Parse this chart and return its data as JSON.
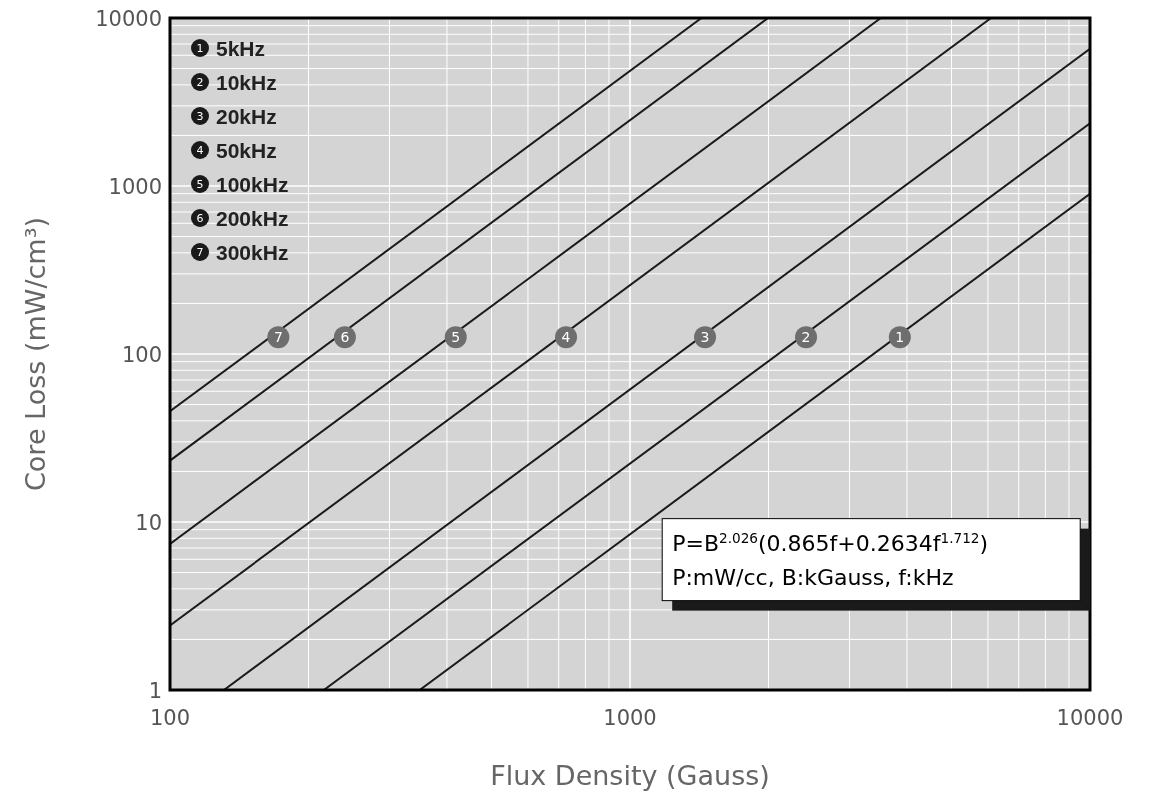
{
  "chart_data": {
    "type": "line",
    "xlabel": "Flux Density (Gauss)",
    "ylabel": "Core Loss (mW/cm³)",
    "log": "xy",
    "grid": true,
    "legend": "top left",
    "marker": "none",
    "line_style": "solid",
    "xlim": [
      100,
      10000
    ],
    "ylim": [
      1,
      10000
    ],
    "xticks": [
      100,
      {
        "value": 200,
        "label": null
      },
      {
        "value": 300,
        "label": null
      },
      {
        "value": 400,
        "label": null
      },
      {
        "value": 500,
        "label": null
      },
      {
        "value": 600,
        "label": null
      },
      {
        "value": 700,
        "label": null
      },
      {
        "value": 800,
        "label": null
      },
      {
        "value": 900,
        "label": null
      },
      1000,
      {
        "value": 2000,
        "label": null
      },
      {
        "value": 3000,
        "label": null
      },
      {
        "value": 4000,
        "label": null
      },
      {
        "value": 5000,
        "label": null
      },
      {
        "value": 6000,
        "label": null
      },
      {
        "value": 7000,
        "label": null
      },
      {
        "value": 8000,
        "label": null
      },
      {
        "value": 9000,
        "label": null
      },
      10000
    ],
    "yticks": [
      1,
      {
        "value": 2,
        "label": null
      },
      {
        "value": 3,
        "label": null
      },
      {
        "value": 4,
        "label": null
      },
      {
        "value": 5,
        "label": null
      },
      {
        "value": 6,
        "label": null
      },
      {
        "value": 7,
        "label": null
      },
      {
        "value": 8,
        "label": null
      },
      {
        "value": 9,
        "label": null
      },
      10,
      {
        "value": 20,
        "label": null
      },
      {
        "value": 30,
        "label": null
      },
      {
        "value": 40,
        "label": null
      },
      {
        "value": 50,
        "label": null
      },
      {
        "value": 60,
        "label": null
      },
      {
        "value": 70,
        "label": null
      },
      {
        "value": 80,
        "label": null
      },
      {
        "value": 90,
        "label": null
      },
      100,
      {
        "value": 200,
        "label": null
      },
      {
        "value": 300,
        "label": null
      },
      {
        "value": 400,
        "label": null
      },
      {
        "value": 500,
        "label": null
      },
      {
        "value": 600,
        "label": null
      },
      {
        "value": 700,
        "label": null
      },
      {
        "value": 800,
        "label": null
      },
      {
        "value": 900,
        "label": null
      },
      1000,
      {
        "value": 2000,
        "label": null
      },
      {
        "value": 3000,
        "label": null
      },
      {
        "value": 4000,
        "label": null
      },
      {
        "value": 5000,
        "label": null
      },
      {
        "value": 6000,
        "label": null
      },
      {
        "value": 7000,
        "label": null
      },
      {
        "value": 8000,
        "label": null
      },
      {
        "value": 9000,
        "label": null
      },
      10000
    ],
    "series": [
      {
        "name": "5kHz",
        "color": "#1a1a1a",
        "x": [
          349,
          10000
        ],
        "values": [
          1,
          899
        ]
      },
      {
        "name": "10kHz",
        "color": "#1a1a1a",
        "x": [
          216,
          10000
        ],
        "values": [
          1,
          2360
        ]
      },
      {
        "name": "20kHz",
        "color": "#1a1a1a",
        "x": [
          131,
          10000
        ],
        "values": [
          1,
          6556
        ]
      },
      {
        "name": "50kHz",
        "color": "#1a1a1a",
        "x": [
          100,
          6095
        ],
        "values": [
          2.42,
          10000
        ]
      },
      {
        "name": "100kHz",
        "color": "#1a1a1a",
        "x": [
          100,
          3510
        ],
        "values": [
          7.4,
          10000
        ]
      },
      {
        "name": "200kHz",
        "color": "#1a1a1a",
        "x": [
          100,
          1996
        ],
        "values": [
          23.2,
          10000
        ]
      },
      {
        "name": "300kHz",
        "color": "#1a1a1a",
        "x": [
          100,
          1430
        ],
        "values": [
          45.6,
          10000
        ]
      }
    ],
    "annotations": [
      {
        "text": "1",
        "x": 3860,
        "y": 126
      },
      {
        "text": "2",
        "x": 2414,
        "y": 126
      },
      {
        "text": "3",
        "x": 1456,
        "y": 126
      },
      {
        "text": "4",
        "x": 726,
        "y": 126
      },
      {
        "text": "5",
        "x": 418,
        "y": 126
      },
      {
        "text": "6",
        "x": 240,
        "y": 126
      },
      {
        "text": "7",
        "x": 172,
        "y": 126
      },
      "P=B$^{2.026}$(0.865f+0.2634f$^{1.712}$)",
      "P:mW/cc, B:kGauss, f:kHz"
    ]
  }
}
